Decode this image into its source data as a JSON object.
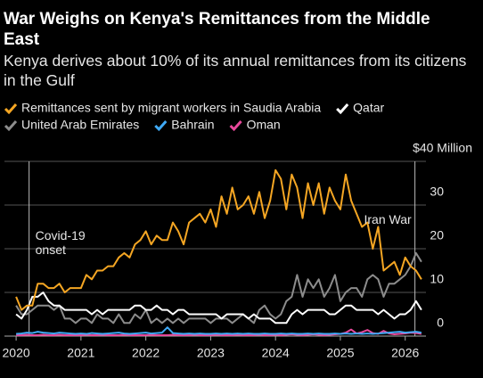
{
  "chart_data": {
    "type": "line",
    "title": "War Weighs on Kenya's Remittances from the Middle East",
    "subtitle": "Kenya derives about 10% of its annual remittances from its citizens in the Gulf",
    "x": [
      2020,
      2020.083,
      2020.167,
      2020.25,
      2020.333,
      2020.417,
      2020.5,
      2020.583,
      2020.667,
      2020.75,
      2020.833,
      2020.917,
      2021,
      2021.083,
      2021.167,
      2021.25,
      2021.333,
      2021.417,
      2021.5,
      2021.583,
      2021.667,
      2021.75,
      2021.833,
      2021.917,
      2022,
      2022.083,
      2022.167,
      2022.25,
      2022.333,
      2022.417,
      2022.5,
      2022.583,
      2022.667,
      2022.75,
      2022.833,
      2022.917,
      2023,
      2023.083,
      2023.167,
      2023.25,
      2023.333,
      2023.417,
      2023.5,
      2023.583,
      2023.667,
      2023.75,
      2023.833,
      2023.917,
      2024,
      2024.083,
      2024.167,
      2024.25,
      2024.333,
      2024.417,
      2024.5,
      2024.583,
      2024.667,
      2024.75,
      2024.833,
      2024.917,
      2025,
      2025.083,
      2025.167,
      2025.25,
      2025.333,
      2025.417,
      2025.5,
      2025.583,
      2025.667,
      2025.75,
      2025.833,
      2025.917,
      2026,
      2026.083,
      2026.167,
      2026.25
    ],
    "series": [
      {
        "name": "Remittances sent by migrant workers in Saudia Arabia",
        "color": "#f5a623",
        "values": [
          9,
          6,
          7,
          7,
          12,
          12,
          11,
          11,
          12,
          10,
          11,
          11,
          11,
          14,
          13,
          15,
          15,
          16,
          16,
          18,
          19,
          18,
          21,
          22,
          24,
          21,
          23,
          22,
          22,
          26,
          24,
          21,
          26,
          27,
          28,
          26,
          29,
          25,
          32,
          28,
          34,
          29,
          30,
          32,
          28,
          33,
          27,
          31,
          38,
          36,
          29,
          37,
          34,
          27,
          35,
          30,
          35,
          28,
          34,
          31,
          29,
          37,
          31,
          28,
          25,
          26,
          20,
          25,
          15,
          16,
          17,
          14,
          18,
          16,
          15,
          13
        ]
      },
      {
        "name": "Qatar",
        "color": "#ffffff",
        "values": [
          5,
          4,
          6,
          9,
          9,
          10,
          8,
          7,
          7,
          6,
          6,
          6,
          6,
          6,
          5,
          6,
          5,
          6,
          6,
          6,
          6,
          6,
          7,
          7,
          6,
          6,
          7,
          6,
          6,
          5,
          6,
          6,
          5,
          5,
          5,
          5,
          5,
          5,
          4,
          5,
          5,
          5,
          5,
          4,
          5,
          4,
          4,
          4,
          3,
          3,
          3,
          5,
          6,
          5,
          6,
          6,
          6,
          6,
          5,
          5,
          6,
          7,
          7,
          6,
          6,
          6,
          6,
          5,
          6,
          5,
          4,
          5,
          5,
          6,
          8,
          6
        ]
      },
      {
        "name": "United Arab Emirates",
        "color": "#8c8c8c",
        "values": [
          7,
          5,
          5,
          6,
          7,
          7,
          7,
          6,
          7,
          4,
          4,
          3,
          4,
          4,
          3,
          5,
          4,
          4,
          3,
          5,
          3,
          3,
          5,
          4,
          6,
          3,
          4,
          3,
          4,
          3,
          4,
          3,
          4,
          4,
          4,
          4,
          3,
          4,
          4,
          4,
          3,
          4,
          5,
          4,
          3,
          6,
          7,
          5,
          4,
          5,
          8,
          9,
          14,
          9,
          13,
          11,
          13,
          9,
          11,
          14,
          8,
          10,
          11,
          11,
          9,
          13,
          14,
          13,
          9,
          12,
          12,
          13,
          14,
          16,
          19,
          17
        ]
      },
      {
        "name": "Bahrain",
        "color": "#3fa9f5",
        "values": [
          0.5,
          0.6,
          0.8,
          0.7,
          1,
          0.8,
          0.7,
          0.6,
          0.8,
          0.7,
          0.6,
          0.5,
          0.6,
          0.5,
          0.7,
          0.6,
          0.5,
          0.6,
          0.7,
          0.8,
          0.6,
          0.5,
          0.6,
          0.7,
          0.8,
          0.6,
          0.7,
          0.8,
          2,
          0.7,
          0.6,
          0.5,
          0.6,
          0.5,
          0.6,
          0.5,
          0.5,
          0.6,
          0.5,
          0.6,
          0.5,
          0.6,
          0.5,
          0.6,
          0.5,
          0.5,
          0.6,
          0.5,
          0.5,
          0.6,
          0.5,
          0.6,
          0.5,
          0.5,
          0.6,
          0.5,
          0.6,
          0.5,
          0.5,
          0.6,
          0.5,
          0.6,
          0.5,
          0.6,
          0.5,
          0.6,
          0.5,
          0.6,
          0.7,
          0.8,
          0.9,
          1,
          0.8,
          0.9,
          1,
          0.8
        ]
      },
      {
        "name": "Oman",
        "color": "#e8489b",
        "values": [
          0.2,
          0.2,
          0.3,
          0.2,
          0.2,
          0.3,
          0.2,
          0.2,
          0.3,
          0.2,
          0.2,
          0.2,
          0.2,
          0.3,
          0.2,
          0.2,
          0.3,
          0.2,
          0.2,
          0.2,
          0.3,
          0.2,
          0.2,
          0.2,
          0.2,
          0.3,
          0.2,
          0.2,
          0.2,
          0.3,
          0.2,
          0.2,
          0.2,
          0.3,
          0.2,
          0.2,
          0.2,
          0.3,
          0.2,
          0.2,
          0.2,
          0.3,
          0.2,
          0.2,
          0.2,
          0.3,
          0.2,
          0.2,
          0.3,
          0.2,
          0.3,
          0.4,
          0.3,
          0.2,
          0.3,
          0.4,
          0.3,
          0.2,
          0.3,
          0.4,
          0.5,
          0.8,
          1.5,
          0.6,
          0.9,
          1.4,
          0.7,
          0.5,
          1.2,
          0.6,
          0.4,
          0.5,
          0.6,
          0.8,
          0.7,
          0.5
        ]
      }
    ],
    "xlim": [
      2019.82,
      2026.32
    ],
    "xticks": [
      2020,
      2021,
      2022,
      2023,
      2024,
      2025,
      2026
    ],
    "ylim": [
      0,
      40
    ],
    "yticks": [
      0,
      10,
      20,
      30,
      {
        "value": 40,
        "label": "$40 Million"
      }
    ],
    "grid": true,
    "annotations": [
      {
        "text": "Covid-19 onset",
        "x": 2020.2
      },
      {
        "text": "Iran War",
        "x": 2026.15
      }
    ]
  }
}
